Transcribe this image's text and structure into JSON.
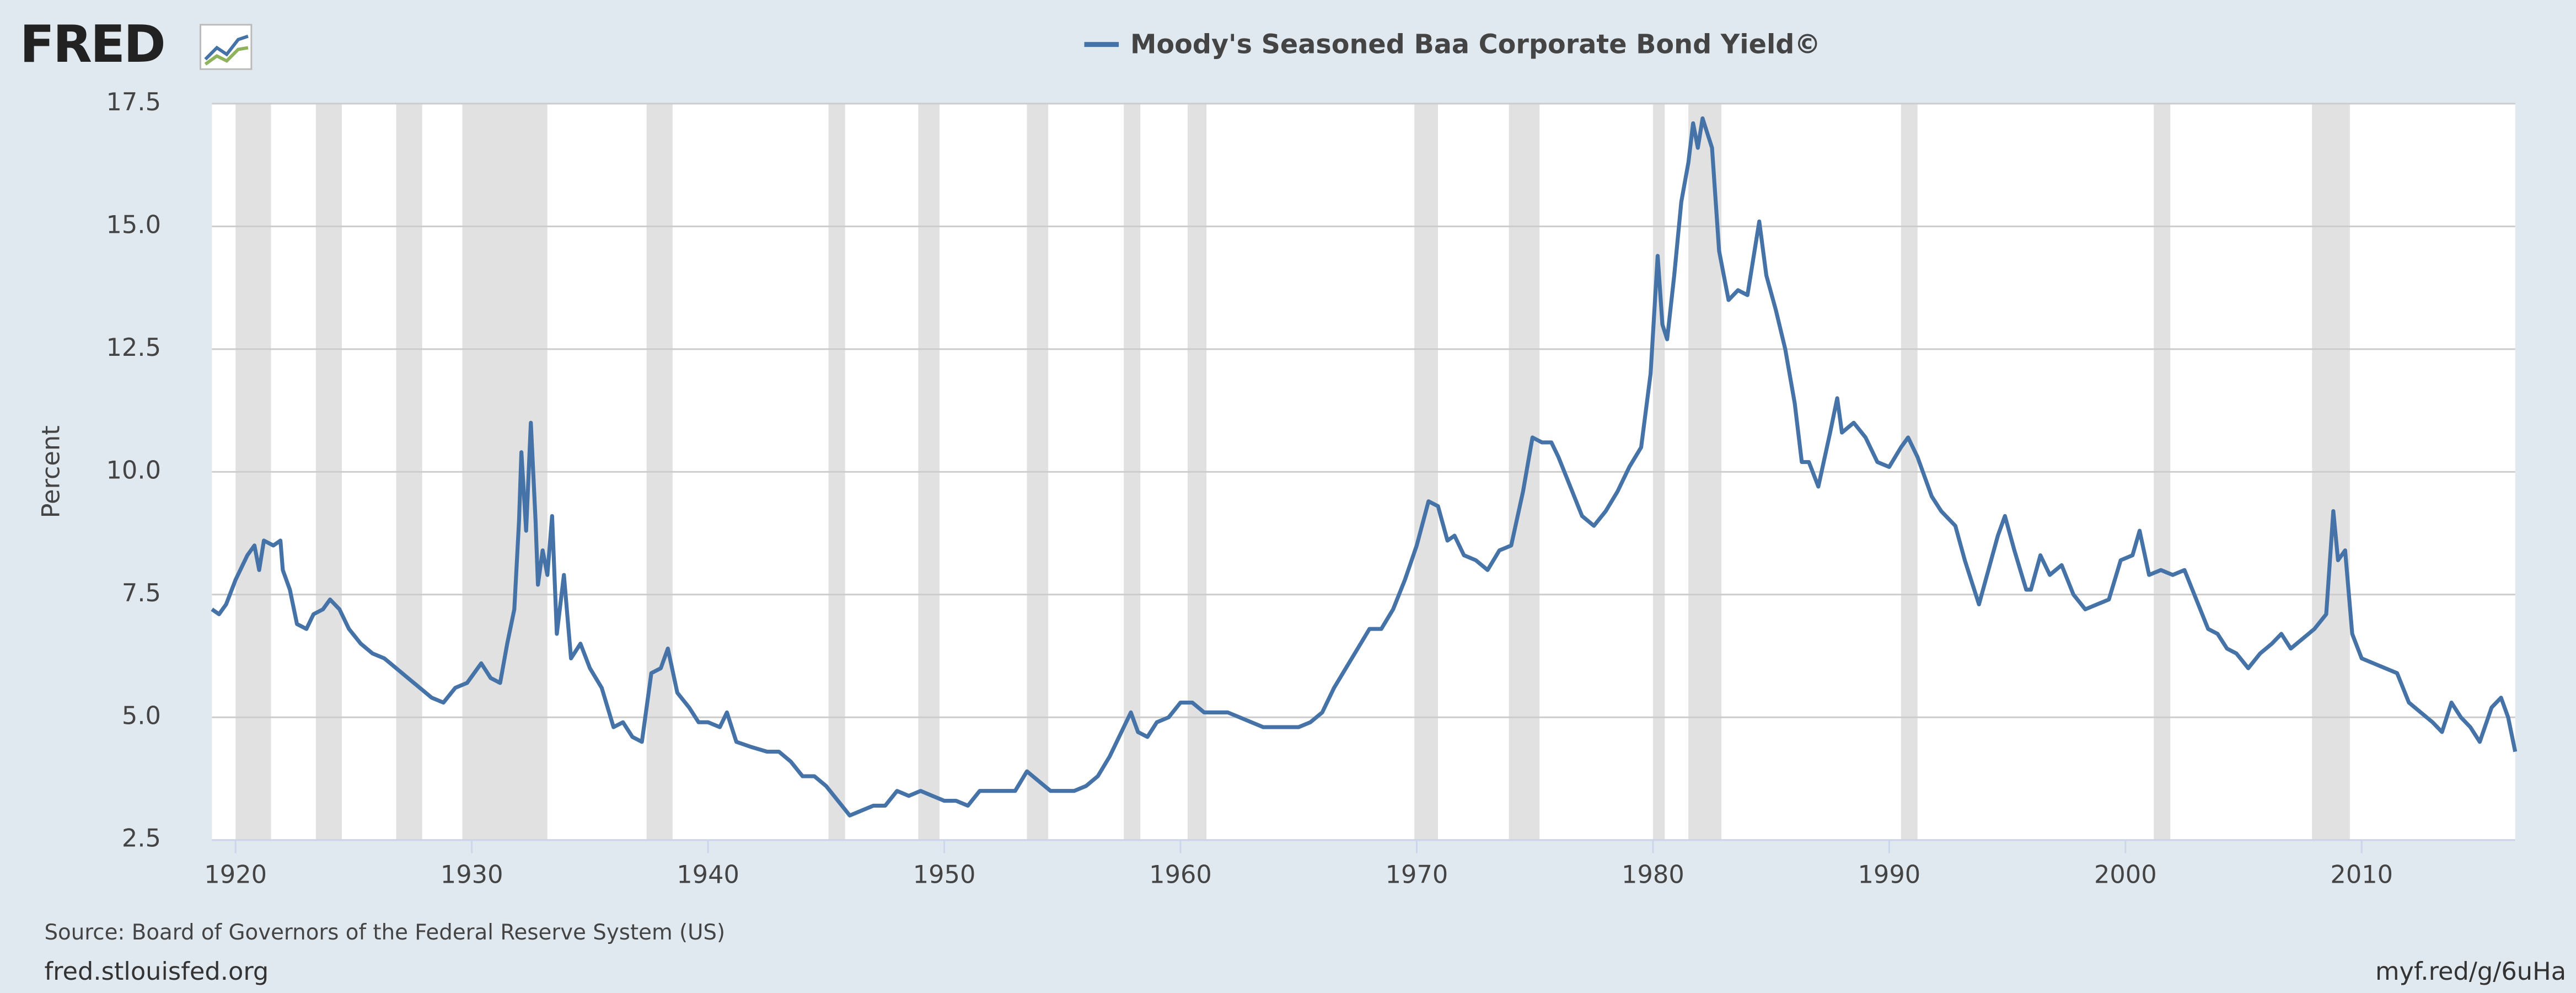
{
  "logo": "FRED",
  "source": "Source: Board of Governors of the Federal Reserve System (US)",
  "site": "fred.stlouisfed.org",
  "short_url": "myf.red/g/6uHa",
  "chart_data": {
    "type": "line",
    "y_label": "Percent",
    "x": [
      1919.0,
      1919.3,
      1919.6,
      1920.0,
      1920.5,
      1920.8,
      1921.0,
      1921.2,
      1921.6,
      1921.9,
      1922.0,
      1922.3,
      1922.6,
      1923.0,
      1923.3,
      1923.7,
      1924.0,
      1924.4,
      1924.8,
      1925.3,
      1925.8,
      1926.3,
      1926.8,
      1927.3,
      1927.8,
      1928.3,
      1928.8,
      1929.3,
      1929.8,
      1930.4,
      1930.8,
      1931.2,
      1931.5,
      1931.8,
      1932.0,
      1932.1,
      1932.3,
      1932.5,
      1932.7,
      1932.8,
      1933.0,
      1933.2,
      1933.4,
      1933.6,
      1933.9,
      1934.2,
      1934.6,
      1935.0,
      1935.5,
      1936.0,
      1936.4,
      1936.8,
      1937.2,
      1937.6,
      1938.0,
      1938.3,
      1938.7,
      1939.2,
      1939.6,
      1940.0,
      1940.5,
      1940.8,
      1941.2,
      1941.8,
      1942.5,
      1943.0,
      1943.5,
      1944.0,
      1944.5,
      1945.0,
      1945.5,
      1946.0,
      1946.5,
      1947.0,
      1947.5,
      1948.0,
      1948.5,
      1949.0,
      1949.5,
      1950.0,
      1950.5,
      1951.0,
      1951.5,
      1952.0,
      1952.5,
      1953.0,
      1953.5,
      1954.0,
      1954.5,
      1955.0,
      1955.5,
      1956.0,
      1956.5,
      1957.0,
      1957.4,
      1957.9,
      1958.2,
      1958.6,
      1959.0,
      1959.5,
      1960.0,
      1960.5,
      1961.0,
      1961.5,
      1962.0,
      1962.5,
      1963.0,
      1963.5,
      1964.0,
      1964.5,
      1965.0,
      1965.5,
      1966.0,
      1966.5,
      1967.0,
      1967.5,
      1968.0,
      1968.5,
      1969.0,
      1969.5,
      1970.0,
      1970.5,
      1970.9,
      1971.3,
      1971.6,
      1972.0,
      1972.5,
      1973.0,
      1973.5,
      1974.0,
      1974.5,
      1974.9,
      1975.3,
      1975.7,
      1976.0,
      1976.5,
      1977.0,
      1977.5,
      1978.0,
      1978.5,
      1979.0,
      1979.5,
      1979.9,
      1980.2,
      1980.4,
      1980.6,
      1980.9,
      1981.2,
      1981.5,
      1981.7,
      1981.9,
      1982.1,
      1982.5,
      1982.8,
      1983.2,
      1983.6,
      1984.0,
      1984.3,
      1984.5,
      1984.8,
      1985.2,
      1985.6,
      1986.0,
      1986.3,
      1986.6,
      1987.0,
      1987.5,
      1987.8,
      1988.0,
      1988.5,
      1989.0,
      1989.5,
      1990.0,
      1990.5,
      1990.8,
      1991.2,
      1991.8,
      1992.2,
      1992.8,
      1993.2,
      1993.8,
      1994.2,
      1994.6,
      1994.9,
      1995.3,
      1995.8,
      1996.0,
      1996.4,
      1996.8,
      1997.3,
      1997.8,
      1998.3,
      1998.8,
      1999.3,
      1999.8,
      2000.3,
      2000.6,
      2001.0,
      2001.5,
      2002.0,
      2002.5,
      2003.0,
      2003.5,
      2003.9,
      2004.3,
      2004.7,
      2005.2,
      2005.7,
      2006.2,
      2006.6,
      2007.0,
      2007.5,
      2008.0,
      2008.5,
      2008.8,
      2009.0,
      2009.3,
      2009.6,
      2010.0,
      2010.5,
      2011.0,
      2011.5,
      2012.0,
      2012.5,
      2013.0,
      2013.4,
      2013.8,
      2014.2,
      2014.6,
      2015.0,
      2015.5,
      2015.9,
      2016.2,
      2016.5
    ],
    "series": [
      {
        "name": "Moody's Seasoned Baa Corporate Bond Yield©",
        "color": "#4572a7",
        "values": [
          7.2,
          7.1,
          7.3,
          7.8,
          8.3,
          8.5,
          8.0,
          8.6,
          8.5,
          8.6,
          8.0,
          7.6,
          6.9,
          6.8,
          7.1,
          7.2,
          7.4,
          7.2,
          6.8,
          6.5,
          6.3,
          6.2,
          6.0,
          5.8,
          5.6,
          5.4,
          5.3,
          5.6,
          5.7,
          6.1,
          5.8,
          5.7,
          6.5,
          7.2,
          9.0,
          10.4,
          8.8,
          11.0,
          9.0,
          7.7,
          8.4,
          7.9,
          9.1,
          6.7,
          7.9,
          6.2,
          6.5,
          6.0,
          5.6,
          4.8,
          4.9,
          4.6,
          4.5,
          5.9,
          6.0,
          6.4,
          5.5,
          5.2,
          4.9,
          4.9,
          4.8,
          5.1,
          4.5,
          4.4,
          4.3,
          4.3,
          4.1,
          3.8,
          3.8,
          3.6,
          3.3,
          3.0,
          3.1,
          3.2,
          3.2,
          3.5,
          3.4,
          3.5,
          3.4,
          3.3,
          3.3,
          3.2,
          3.5,
          3.5,
          3.5,
          3.5,
          3.9,
          3.7,
          3.5,
          3.5,
          3.5,
          3.6,
          3.8,
          4.2,
          4.6,
          5.1,
          4.7,
          4.6,
          4.9,
          5.0,
          5.3,
          5.3,
          5.1,
          5.1,
          5.1,
          5.0,
          4.9,
          4.8,
          4.8,
          4.8,
          4.8,
          4.9,
          5.1,
          5.6,
          6.0,
          6.4,
          6.8,
          6.8,
          7.2,
          7.8,
          8.5,
          9.4,
          9.3,
          8.6,
          8.7,
          8.3,
          8.2,
          8.0,
          8.4,
          8.5,
          9.6,
          10.7,
          10.6,
          10.6,
          10.3,
          9.7,
          9.1,
          8.9,
          9.2,
          9.6,
          10.1,
          10.5,
          12.0,
          14.4,
          13.0,
          12.7,
          14.0,
          15.5,
          16.3,
          17.1,
          16.6,
          17.2,
          16.6,
          14.5,
          13.5,
          13.7,
          13.6,
          14.5,
          15.1,
          14.0,
          13.3,
          12.5,
          11.4,
          10.2,
          10.2,
          9.7,
          10.8,
          11.5,
          10.8,
          11.0,
          10.7,
          10.2,
          10.1,
          10.5,
          10.7,
          10.3,
          9.5,
          9.2,
          8.9,
          8.2,
          7.3,
          8.0,
          8.7,
          9.1,
          8.4,
          7.6,
          7.6,
          8.3,
          7.9,
          8.1,
          7.5,
          7.2,
          7.3,
          7.4,
          8.2,
          8.3,
          8.8,
          7.9,
          8.0,
          7.9,
          8.0,
          7.4,
          6.8,
          6.7,
          6.4,
          6.3,
          6.0,
          6.3,
          6.5,
          6.7,
          6.4,
          6.6,
          6.8,
          7.1,
          9.2,
          8.2,
          8.4,
          6.7,
          6.2,
          6.1,
          6.0,
          5.9,
          5.3,
          5.1,
          4.9,
          4.7,
          5.3,
          5.0,
          4.8,
          4.5,
          5.2,
          5.4,
          5.0,
          4.3
        ]
      }
    ],
    "recessions": [
      [
        1920.0,
        1921.5
      ],
      [
        1923.4,
        1924.5
      ],
      [
        1926.8,
        1927.9
      ],
      [
        1929.6,
        1933.2
      ],
      [
        1937.4,
        1938.5
      ],
      [
        1945.1,
        1945.8
      ],
      [
        1948.9,
        1949.8
      ],
      [
        1953.5,
        1954.4
      ],
      [
        1957.6,
        1958.3
      ],
      [
        1960.3,
        1961.1
      ],
      [
        1969.9,
        1970.9
      ],
      [
        1973.9,
        1975.2
      ],
      [
        1980.0,
        1980.5
      ],
      [
        1981.5,
        1982.9
      ],
      [
        1990.5,
        1991.2
      ],
      [
        2001.2,
        2001.9
      ],
      [
        2007.9,
        2009.5
      ]
    ],
    "recession_color": "#e1e1e1",
    "xlim": [
      1919.0,
      2016.5
    ],
    "ylim": [
      2.5,
      17.5
    ],
    "xticks": [
      1920,
      1930,
      1940,
      1950,
      1960,
      1970,
      1980,
      1990,
      2000,
      2010
    ],
    "yticks": [
      2.5,
      {
        "value": 5,
        "label": "5.0"
      },
      7.5,
      {
        "value": 10,
        "label": "10.0"
      },
      12.5,
      {
        "value": 15,
        "label": "15.0"
      },
      17.5
    ],
    "grid": true
  }
}
